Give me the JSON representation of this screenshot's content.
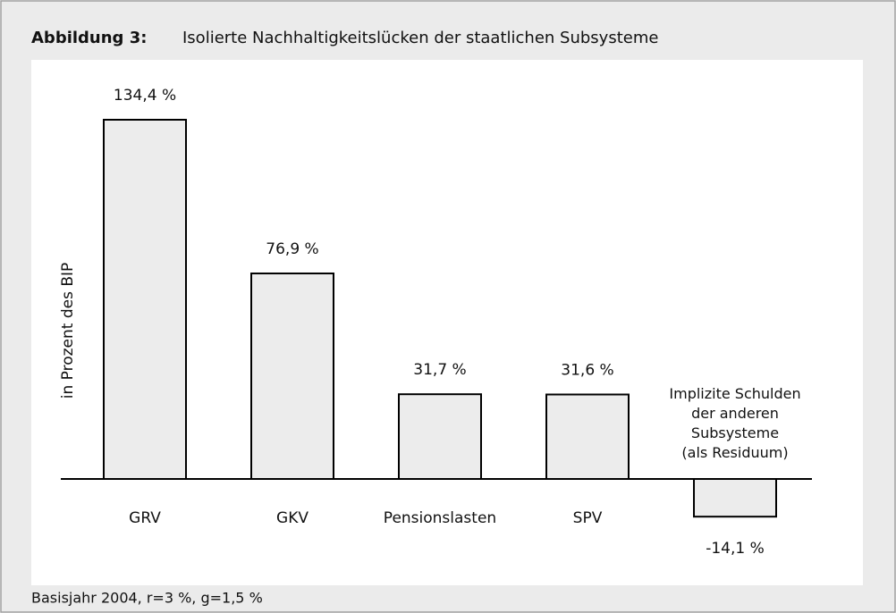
{
  "chart_data": {
    "type": "bar",
    "figure_label": "Abbildung 3:",
    "title": "Isolierte Nachhaltigkeitslücken der staatlichen Subsysteme",
    "y_label": "in Prozent des BIP",
    "categories": [
      "GRV",
      "GKV",
      "Pensionslasten",
      "SPV",
      "Implizite Schulden\nder anderen\nSubsysteme\n(als Residuum)"
    ],
    "values": [
      134.4,
      76.9,
      31.7,
      31.6,
      -14.1
    ],
    "value_labels": [
      "134,4 %",
      "76,9 %",
      "31,7 %",
      "31,6 %",
      "-14,1 %"
    ],
    "color": "#ececec",
    "note": "Basisjahr 2004, r=3 %, g=1,5 %"
  }
}
